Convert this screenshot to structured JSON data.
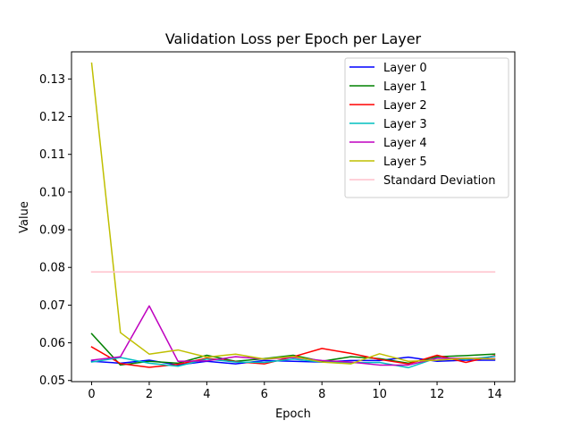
{
  "chart_data": {
    "type": "line",
    "title": "Validation Loss per Epoch per Layer",
    "xlabel": "Epoch",
    "ylabel": "Value",
    "xlim": [
      -0.7,
      14.7
    ],
    "ylim": [
      0.0497,
      0.1372
    ],
    "xticks": [
      0,
      2,
      4,
      6,
      8,
      10,
      12,
      14
    ],
    "yticks": [
      0.05,
      0.06,
      0.07,
      0.08,
      0.09,
      0.1,
      0.11,
      0.12,
      0.13
    ],
    "ytick_labels": [
      "0.05",
      "0.06",
      "0.07",
      "0.08",
      "0.09",
      "0.10",
      "0.11",
      "0.12",
      "0.13"
    ],
    "legend_position": "top-right",
    "grid": false,
    "x": [
      0,
      1,
      2,
      3,
      4,
      5,
      6,
      7,
      8,
      9,
      10,
      11,
      12,
      13,
      14
    ],
    "series": [
      {
        "name": "Layer 0",
        "color": "#0000ff",
        "values": [
          0.0551,
          0.0546,
          0.0554,
          0.0541,
          0.0551,
          0.0544,
          0.0553,
          0.0551,
          0.0549,
          0.0553,
          0.0553,
          0.0562,
          0.0551,
          0.0554,
          0.0554
        ]
      },
      {
        "name": "Layer 1",
        "color": "#008000",
        "values": [
          0.0624,
          0.0541,
          0.0551,
          0.0546,
          0.0567,
          0.0551,
          0.0558,
          0.0567,
          0.0551,
          0.0563,
          0.0558,
          0.0546,
          0.0563,
          0.0566,
          0.057
        ]
      },
      {
        "name": "Layer 2",
        "color": "#ff0000",
        "values": [
          0.0589,
          0.0545,
          0.0535,
          0.0543,
          0.0559,
          0.055,
          0.0544,
          0.0563,
          0.0585,
          0.0572,
          0.0556,
          0.0544,
          0.0567,
          0.0548,
          0.0566
        ]
      },
      {
        "name": "Layer 3",
        "color": "#00bfbf",
        "values": [
          0.0549,
          0.0561,
          0.0546,
          0.0538,
          0.0557,
          0.0549,
          0.0548,
          0.0557,
          0.0549,
          0.0547,
          0.0548,
          0.0534,
          0.056,
          0.0556,
          0.0564
        ]
      },
      {
        "name": "Layer 4",
        "color": "#bf00bf",
        "values": [
          0.0554,
          0.0563,
          0.0698,
          0.0551,
          0.0552,
          0.0563,
          0.0557,
          0.0561,
          0.0553,
          0.0549,
          0.0541,
          0.0541,
          0.0559,
          0.0559,
          0.0558
        ]
      },
      {
        "name": "Layer 5",
        "color": "#bfbf00",
        "values": [
          0.1342,
          0.0627,
          0.057,
          0.0581,
          0.0562,
          0.057,
          0.0557,
          0.0564,
          0.0549,
          0.0544,
          0.0571,
          0.0551,
          0.0554,
          0.0559,
          0.0557
        ]
      },
      {
        "name": "Standard Deviation",
        "color": "#ffc0cb",
        "values": [
          0.0788,
          0.0788,
          0.0788,
          0.0788,
          0.0788,
          0.0788,
          0.0788,
          0.0788,
          0.0788,
          0.0788,
          0.0788,
          0.0788,
          0.0788,
          0.0788,
          0.0788
        ]
      }
    ]
  }
}
